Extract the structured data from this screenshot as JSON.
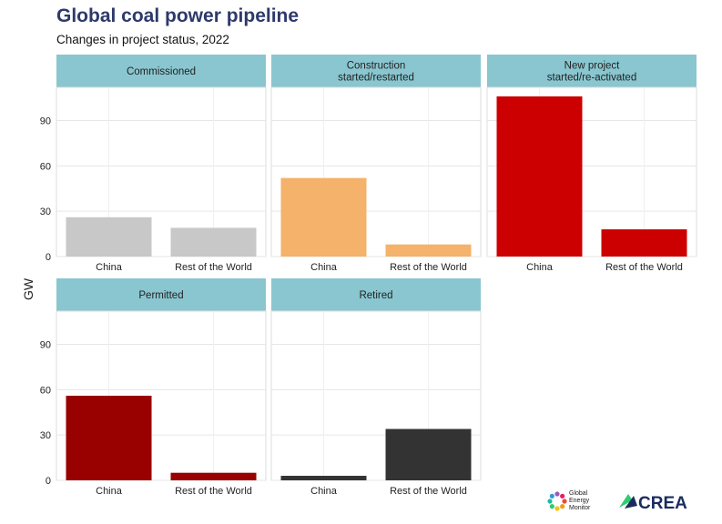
{
  "header": {
    "title": "Global coal power pipeline",
    "subtitle": "Changes in project status, 2022"
  },
  "chart_data": {
    "type": "bar",
    "ylabel": "GW",
    "xlabel": "",
    "ylim": [
      0,
      112
    ],
    "yticks": [
      0,
      30,
      60,
      90
    ],
    "grid": true,
    "categories": [
      "China",
      "Rest of the World"
    ],
    "panels": [
      {
        "name": "Commissioned",
        "values": [
          26,
          19
        ],
        "colors": [
          "#c8c8c8",
          "#c8c8c8"
        ]
      },
      {
        "name": "Construction\nstarted/restarted",
        "values": [
          52,
          8
        ],
        "colors": [
          "#f4b26a",
          "#f4b26a"
        ]
      },
      {
        "name": "New project\nstarted/re-activated",
        "values": [
          106,
          18
        ],
        "colors": [
          "#cc0000",
          "#cc0000"
        ]
      },
      {
        "name": "Permitted",
        "values": [
          56,
          5
        ],
        "colors": [
          "#990000",
          "#990000"
        ]
      },
      {
        "name": "Retired",
        "values": [
          3,
          34
        ],
        "colors": [
          "#333333",
          "#333333"
        ]
      }
    ]
  },
  "logos": {
    "gem_line1": "Global",
    "gem_line2": "Energy",
    "gem_line3": "Monitor",
    "crea": "CREA",
    "gem_colors": [
      "#e84c3d",
      "#f39c12",
      "#f1c40f",
      "#2ecc71",
      "#1abc9c",
      "#3498db",
      "#9b59b6",
      "#e91e63"
    ],
    "crea_color": "#1a2b5f"
  }
}
